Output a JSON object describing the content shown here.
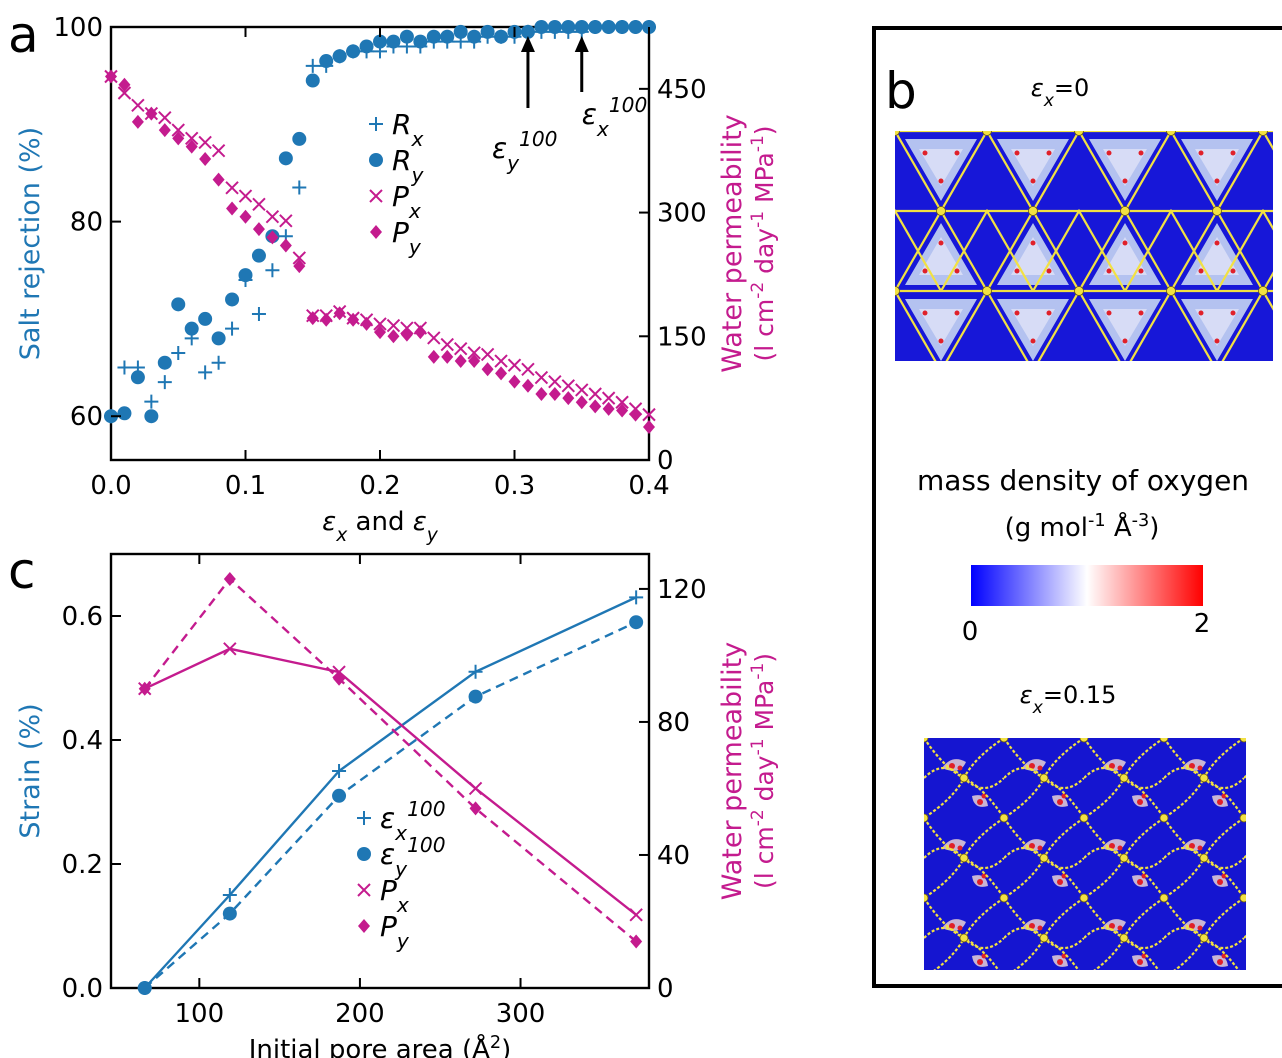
{
  "panel_labels": {
    "a": "a",
    "b": "b",
    "c": "c"
  },
  "colors": {
    "blue": "#1f77b4",
    "magenta": "#c41b8e",
    "black": "#000000",
    "yellow": "#f2e142"
  },
  "chart_data": [
    {
      "id": "a",
      "type": "scatter",
      "xlabel_parts": [
        "ε",
        "x",
        " and ",
        "ε",
        "y"
      ],
      "ylabel_left": "Salt rejection (%)",
      "ylabel_right_line1_parts": [
        "Water permeability"
      ],
      "ylabel_right_line2_parts": [
        "(l cm",
        "-2",
        " day",
        "-1",
        " MPa",
        "-1",
        ")"
      ],
      "xlim": [
        0,
        0.4
      ],
      "ylim_left": [
        55.5,
        100
      ],
      "ylim_right": [
        0,
        525
      ],
      "xticks": [
        "0.0",
        "0.1",
        "0.2",
        "0.3",
        "0.4"
      ],
      "xtick_values": [
        0,
        0.1,
        0.2,
        0.3,
        0.4
      ],
      "yticks_left": [
        "60",
        "80",
        "100"
      ],
      "ytick_left_values": [
        60,
        80,
        100
      ],
      "yticks_right": [
        "0",
        "150",
        "300",
        "450"
      ],
      "ytick_right_values": [
        0,
        150,
        300,
        450
      ],
      "legend": [
        {
          "name_parts": [
            "R",
            "x"
          ],
          "marker": "plus",
          "color": "#1f77b4"
        },
        {
          "name_parts": [
            "R",
            "y"
          ],
          "marker": "circle",
          "color": "#1f77b4"
        },
        {
          "name_parts": [
            "P",
            "x"
          ],
          "marker": "x",
          "color": "#c41b8e"
        },
        {
          "name_parts": [
            "P",
            "y"
          ],
          "marker": "diamond",
          "color": "#c41b8e"
        }
      ],
      "annotations": [
        {
          "label_parts": [
            "ε",
            "y",
            "100"
          ],
          "x": 0.31
        },
        {
          "label_parts": [
            "ε",
            "x",
            "100"
          ],
          "x": 0.35
        }
      ],
      "series": [
        {
          "name": "R_x",
          "axis": "left",
          "marker": "plus",
          "color": "#1f77b4",
          "x": [
            0.0,
            0.01,
            0.02,
            0.03,
            0.04,
            0.05,
            0.06,
            0.07,
            0.08,
            0.09,
            0.1,
            0.11,
            0.12,
            0.13,
            0.14,
            0.15,
            0.16,
            0.17,
            0.18,
            0.19,
            0.2,
            0.21,
            0.22,
            0.23,
            0.24,
            0.25,
            0.26,
            0.27,
            0.28,
            0.29,
            0.3,
            0.31,
            0.32,
            0.33,
            0.34,
            0.35,
            0.36,
            0.37,
            0.38,
            0.39,
            0.4
          ],
          "y": [
            60.0,
            65.0,
            65.0,
            61.5,
            63.5,
            66.5,
            68.0,
            64.5,
            65.5,
            69.0,
            74.0,
            70.5,
            75.0,
            78.5,
            83.5,
            96.0,
            96.0,
            97.0,
            97.5,
            97.5,
            97.5,
            98.0,
            98.0,
            98.0,
            98.5,
            98.5,
            98.5,
            98.5,
            99.0,
            99.0,
            99.0,
            99.5,
            99.5,
            99.5,
            99.5,
            99.5,
            100.0,
            100.0,
            100.0,
            100.0,
            100.0
          ]
        },
        {
          "name": "R_y",
          "axis": "left",
          "marker": "circle",
          "color": "#1f77b4",
          "x": [
            0.0,
            0.01,
            0.02,
            0.03,
            0.04,
            0.05,
            0.06,
            0.07,
            0.08,
            0.09,
            0.1,
            0.11,
            0.12,
            0.13,
            0.14,
            0.15,
            0.16,
            0.17,
            0.18,
            0.19,
            0.2,
            0.21,
            0.22,
            0.23,
            0.24,
            0.25,
            0.26,
            0.27,
            0.28,
            0.29,
            0.3,
            0.31,
            0.32,
            0.33,
            0.34,
            0.35,
            0.36,
            0.37,
            0.38,
            0.39,
            0.4
          ],
          "y": [
            60.0,
            60.3,
            64.0,
            60.0,
            65.5,
            71.5,
            69.0,
            70.0,
            68.0,
            72.0,
            74.5,
            76.5,
            78.5,
            86.5,
            88.5,
            94.5,
            96.5,
            97.0,
            97.5,
            98.0,
            98.5,
            98.5,
            99.0,
            98.5,
            99.0,
            99.0,
            99.5,
            99.0,
            99.5,
            99.0,
            99.5,
            99.5,
            100.0,
            100.0,
            100.0,
            100.0,
            100.0,
            100.0,
            100.0,
            100.0,
            100.0
          ]
        },
        {
          "name": "P_x",
          "axis": "right",
          "marker": "x",
          "color": "#c41b8e",
          "x": [
            0.0,
            0.01,
            0.02,
            0.03,
            0.04,
            0.05,
            0.06,
            0.07,
            0.08,
            0.09,
            0.1,
            0.11,
            0.12,
            0.13,
            0.14,
            0.15,
            0.16,
            0.17,
            0.18,
            0.19,
            0.2,
            0.21,
            0.22,
            0.23,
            0.24,
            0.25,
            0.26,
            0.27,
            0.28,
            0.29,
            0.3,
            0.31,
            0.32,
            0.33,
            0.34,
            0.35,
            0.36,
            0.37,
            0.38,
            0.39,
            0.4
          ],
          "y": [
            465,
            445,
            430,
            420,
            415,
            400,
            390,
            385,
            375,
            330,
            320,
            310,
            295,
            290,
            245,
            175,
            175,
            180,
            172,
            170,
            165,
            163,
            160,
            160,
            148,
            140,
            135,
            130,
            128,
            120,
            115,
            110,
            100,
            95,
            90,
            85,
            80,
            75,
            70,
            62,
            55
          ]
        },
        {
          "name": "P_y",
          "axis": "right",
          "marker": "diamond",
          "color": "#c41b8e",
          "x": [
            0.0,
            0.01,
            0.02,
            0.03,
            0.04,
            0.05,
            0.06,
            0.07,
            0.08,
            0.09,
            0.1,
            0.11,
            0.12,
            0.13,
            0.14,
            0.15,
            0.16,
            0.17,
            0.18,
            0.19,
            0.2,
            0.21,
            0.22,
            0.23,
            0.24,
            0.25,
            0.26,
            0.27,
            0.28,
            0.29,
            0.3,
            0.31,
            0.32,
            0.33,
            0.34,
            0.35,
            0.36,
            0.37,
            0.38,
            0.39,
            0.4
          ],
          "y": [
            465,
            455,
            410,
            420,
            400,
            390,
            380,
            365,
            340,
            305,
            295,
            280,
            270,
            260,
            235,
            172,
            170,
            178,
            170,
            165,
            155,
            150,
            152,
            155,
            125,
            125,
            120,
            120,
            110,
            105,
            95,
            90,
            80,
            80,
            75,
            70,
            65,
            62,
            60,
            55,
            40
          ]
        }
      ]
    },
    {
      "id": "c",
      "type": "line",
      "xlabel_parts": [
        "Initial pore area (Å",
        "2",
        ")"
      ],
      "ylabel_left": "Strain (%)",
      "ylabel_right_line1_parts": [
        "Water permeability"
      ],
      "ylabel_right_line2_parts": [
        "(l cm",
        "-2",
        " day",
        "-1",
        " MPa",
        "-1",
        ")"
      ],
      "xlim": [
        45,
        380
      ],
      "ylim_left": [
        0,
        0.7
      ],
      "ylim_right": [
        0,
        130.5
      ],
      "xticks": [
        "100",
        "200",
        "300"
      ],
      "xtick_values": [
        100,
        200,
        300
      ],
      "yticks_left": [
        "0.0",
        "0.2",
        "0.4",
        "0.6"
      ],
      "ytick_left_values": [
        0,
        0.2,
        0.4,
        0.6
      ],
      "yticks_right": [
        "0",
        "40",
        "80",
        "120"
      ],
      "ytick_right_values": [
        0,
        40,
        80,
        120
      ],
      "legend": [
        {
          "name_parts": [
            "ε",
            "x",
            "100"
          ],
          "marker": "plus",
          "color": "#1f77b4"
        },
        {
          "name_parts": [
            "ε",
            "y",
            "100"
          ],
          "marker": "circle",
          "color": "#1f77b4"
        },
        {
          "name_parts": [
            "P",
            "x"
          ],
          "marker": "x",
          "color": "#c41b8e"
        },
        {
          "name_parts": [
            "P",
            "y"
          ],
          "marker": "diamond",
          "color": "#c41b8e"
        }
      ],
      "series": [
        {
          "name": "εx100",
          "axis": "left",
          "marker": "plus",
          "color": "#1f77b4",
          "dash": false,
          "x": [
            66,
            119,
            187,
            272,
            372
          ],
          "y": [
            0.0,
            0.15,
            0.35,
            0.51,
            0.63
          ]
        },
        {
          "name": "εy100",
          "axis": "left",
          "marker": "circle",
          "color": "#1f77b4",
          "dash": true,
          "x": [
            66,
            119,
            187,
            272,
            372
          ],
          "y": [
            0.0,
            0.12,
            0.31,
            0.47,
            0.59
          ]
        },
        {
          "name": "Px",
          "axis": "right",
          "marker": "x",
          "color": "#c41b8e",
          "dash": false,
          "x": [
            66,
            119,
            187,
            272,
            372
          ],
          "y": [
            90,
            102,
            95,
            60,
            22
          ]
        },
        {
          "name": "Py",
          "axis": "right",
          "marker": "diamond",
          "color": "#c41b8e",
          "dash": true,
          "x": [
            66,
            119,
            187,
            272,
            372
          ],
          "y": [
            90,
            123,
            93,
            54,
            14
          ]
        }
      ]
    }
  ],
  "panel_b": {
    "top_label_parts": [
      "ε",
      "x",
      "=0"
    ],
    "bottom_label_parts": [
      "ε",
      "x",
      "=0.15"
    ],
    "colorbar_title": "mass density of oxygen",
    "colorbar_units_parts": [
      "(g mol",
      "-1",
      " Å",
      "-3",
      ")"
    ],
    "colorbar_min": "0",
    "colorbar_max": "2"
  }
}
